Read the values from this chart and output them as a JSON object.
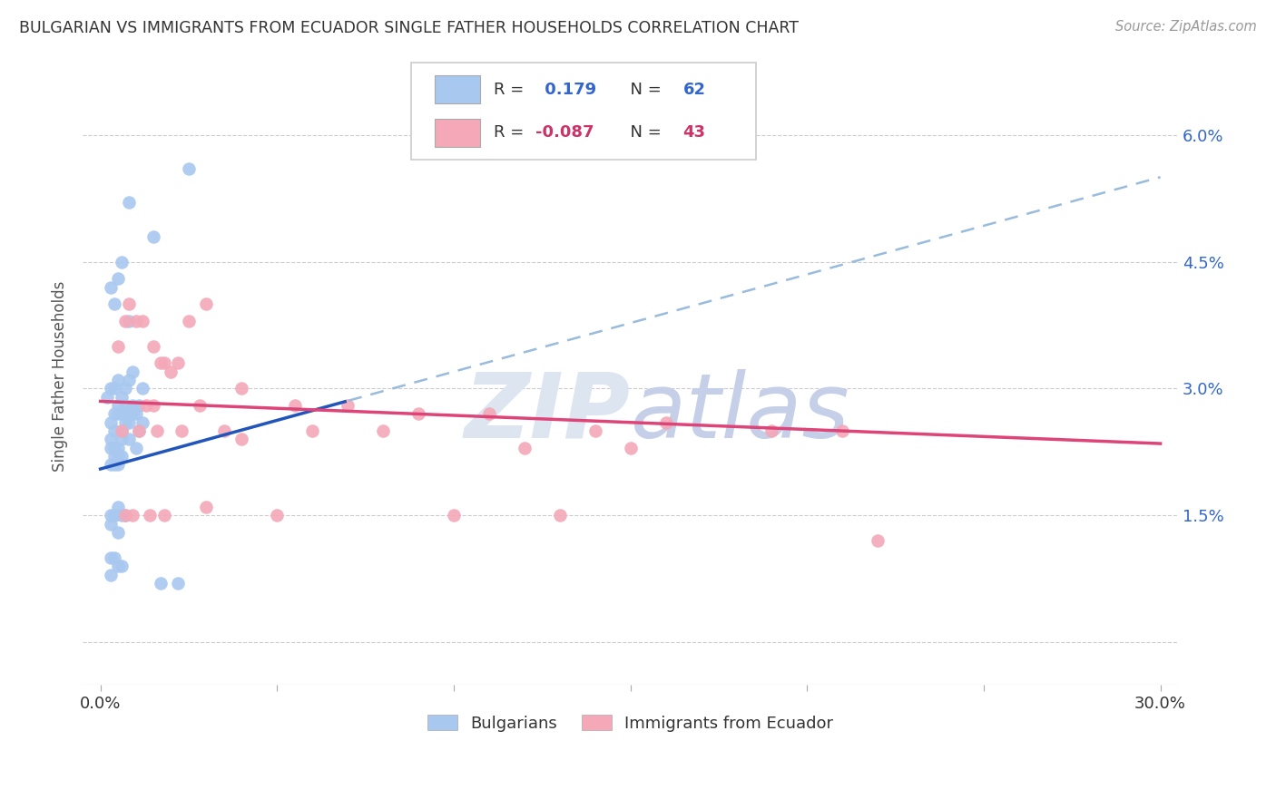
{
  "title": "BULGARIAN VS IMMIGRANTS FROM ECUADOR SINGLE FATHER HOUSEHOLDS CORRELATION CHART",
  "source": "Source: ZipAtlas.com",
  "ylabel": "Single Father Households",
  "bg_color": "#ffffff",
  "grid_color": "#cccccc",
  "blue_color": "#a8c8f0",
  "pink_color": "#f4a8b8",
  "blue_line_color": "#2255bb",
  "pink_line_color": "#dd4477",
  "dashed_line_color": "#99bbdd",
  "legend_R1": "0.179",
  "legend_N1": "62",
  "legend_R2": "-0.087",
  "legend_N2": "43",
  "watermark_zip": "ZIP",
  "watermark_atlas": "atlas",
  "blue_scatter_x": [
    0.8,
    1.5,
    2.5,
    0.3,
    0.5,
    0.4,
    0.6,
    0.8,
    0.3,
    0.5,
    0.7,
    0.9,
    0.2,
    0.4,
    0.6,
    0.8,
    0.5,
    0.7,
    0.9,
    1.2,
    0.3,
    0.5,
    0.7,
    0.9,
    1.1,
    0.6,
    1.0,
    0.4,
    0.8,
    1.2,
    0.6,
    1.1,
    0.4,
    0.7,
    0.3,
    0.6,
    1.0,
    0.8,
    0.4,
    0.5,
    0.3,
    0.4,
    0.5,
    0.6,
    0.3,
    0.4,
    0.5,
    0.3,
    0.4,
    0.5,
    0.3,
    0.4,
    0.6,
    0.5,
    0.7,
    0.3,
    0.4,
    0.5,
    0.6,
    0.3,
    1.7,
    2.2
  ],
  "blue_scatter_y": [
    5.2,
    4.8,
    5.6,
    4.2,
    4.3,
    4.0,
    4.5,
    3.8,
    3.0,
    3.1,
    3.0,
    3.2,
    2.9,
    3.0,
    2.9,
    3.1,
    2.8,
    2.8,
    2.8,
    3.0,
    2.6,
    2.7,
    2.7,
    2.7,
    2.8,
    2.7,
    2.7,
    2.5,
    2.6,
    2.6,
    2.5,
    2.5,
    2.7,
    2.6,
    2.4,
    2.4,
    2.3,
    2.4,
    2.3,
    2.3,
    2.3,
    2.2,
    2.2,
    2.2,
    2.1,
    2.1,
    2.1,
    1.5,
    1.5,
    1.6,
    1.4,
    1.5,
    1.5,
    1.3,
    1.5,
    1.0,
    1.0,
    0.9,
    0.9,
    0.8,
    0.7,
    0.7
  ],
  "pink_scatter_x": [
    0.5,
    1.0,
    1.5,
    1.8,
    2.2,
    1.2,
    0.8,
    1.5,
    2.0,
    0.7,
    1.3,
    2.5,
    3.0,
    1.7,
    2.8,
    4.0,
    5.5,
    7.0,
    9.0,
    11.0,
    14.0,
    16.0,
    19.0,
    21.0,
    0.6,
    1.1,
    1.6,
    2.3,
    3.5,
    6.0,
    8.0,
    12.0,
    15.0,
    0.9,
    1.8,
    3.0,
    5.0,
    10.0,
    13.0,
    0.7,
    1.4,
    4.0,
    22.0
  ],
  "pink_scatter_y": [
    3.5,
    3.8,
    3.5,
    3.3,
    3.3,
    3.8,
    4.0,
    2.8,
    3.2,
    3.8,
    2.8,
    3.8,
    4.0,
    3.3,
    2.8,
    3.0,
    2.8,
    2.8,
    2.7,
    2.7,
    2.5,
    2.6,
    2.5,
    2.5,
    2.5,
    2.5,
    2.5,
    2.5,
    2.5,
    2.5,
    2.5,
    2.3,
    2.3,
    1.5,
    1.5,
    1.6,
    1.5,
    1.5,
    1.5,
    1.5,
    1.5,
    2.4,
    1.2
  ],
  "xlim": [
    0.0,
    30.0
  ],
  "ylim": [
    -0.5,
    6.8
  ],
  "ytick_vals": [
    0.0,
    1.5,
    3.0,
    4.5,
    6.0
  ],
  "ytick_labels": [
    "",
    "1.5%",
    "3.0%",
    "4.5%",
    "6.0%"
  ],
  "xtick_vals": [
    0.0,
    5.0,
    10.0,
    15.0,
    20.0,
    25.0,
    30.0
  ],
  "xtick_labels": [
    "0.0%",
    "",
    "",
    "",
    "",
    "",
    "30.0%"
  ]
}
